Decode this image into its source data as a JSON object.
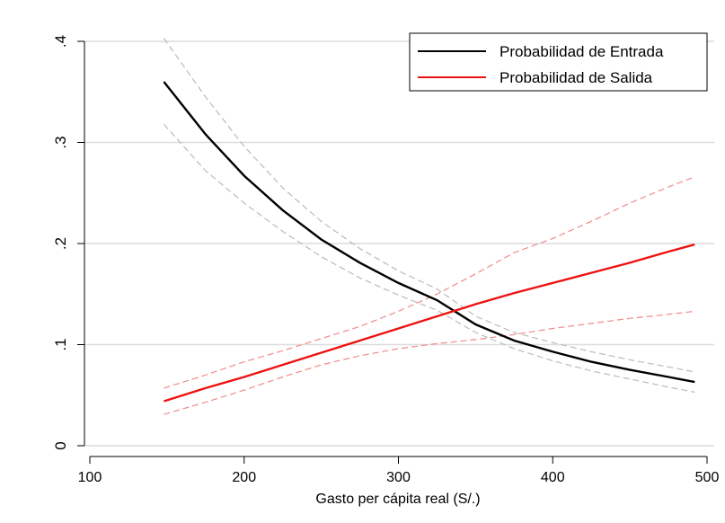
{
  "chart_data": {
    "type": "line",
    "xlabel": "Gasto per cápita real (S/.)",
    "ylabel": "",
    "xlim": [
      100,
      500
    ],
    "ylim": [
      0,
      0.4
    ],
    "x_ticks": [
      100,
      200,
      300,
      400,
      500
    ],
    "x_tick_labels": [
      "100",
      "200",
      "300",
      "400",
      "500"
    ],
    "y_ticks": [
      0,
      0.1,
      0.2,
      0.3,
      0.4
    ],
    "y_tick_labels": [
      "0",
      ".1",
      ".2",
      ".3",
      ".4"
    ],
    "grid": "horizontal",
    "legend_position": "top-right",
    "colors": {
      "entrada": "#000000",
      "salida": "#ee1111",
      "entrada_ci": "#bbbbbb",
      "salida_ci": "#f08a8a"
    },
    "series": [
      {
        "name": "Probabilidad de Entrada",
        "color": "#000000",
        "x": [
          148,
          175,
          200,
          225,
          250,
          275,
          300,
          325,
          350,
          375,
          400,
          425,
          450,
          475,
          492
        ],
        "y": [
          0.36,
          0.308,
          0.267,
          0.233,
          0.204,
          0.181,
          0.161,
          0.144,
          0.12,
          0.104,
          0.093,
          0.083,
          0.075,
          0.068,
          0.063
        ],
        "ci_lower": [
          0.318,
          0.272,
          0.24,
          0.212,
          0.187,
          0.166,
          0.149,
          0.134,
          0.112,
          0.096,
          0.084,
          0.074,
          0.066,
          0.058,
          0.053
        ],
        "ci_upper": [
          0.403,
          0.345,
          0.296,
          0.255,
          0.222,
          0.195,
          0.173,
          0.155,
          0.128,
          0.112,
          0.102,
          0.093,
          0.085,
          0.078,
          0.073
        ]
      },
      {
        "name": "Probabilidad de Salida",
        "color": "#ee1111",
        "x": [
          148,
          175,
          200,
          225,
          250,
          275,
          300,
          325,
          350,
          375,
          400,
          425,
          450,
          475,
          492
        ],
        "y": [
          0.044,
          0.057,
          0.068,
          0.08,
          0.092,
          0.104,
          0.116,
          0.128,
          0.14,
          0.151,
          0.161,
          0.171,
          0.181,
          0.192,
          0.199
        ],
        "ci_lower": [
          0.031,
          0.043,
          0.055,
          0.068,
          0.08,
          0.089,
          0.096,
          0.101,
          0.105,
          0.11,
          0.116,
          0.121,
          0.126,
          0.13,
          0.133
        ],
        "ci_upper": [
          0.057,
          0.07,
          0.083,
          0.094,
          0.106,
          0.118,
          0.133,
          0.15,
          0.17,
          0.191,
          0.205,
          0.222,
          0.24,
          0.256,
          0.266
        ]
      }
    ]
  }
}
